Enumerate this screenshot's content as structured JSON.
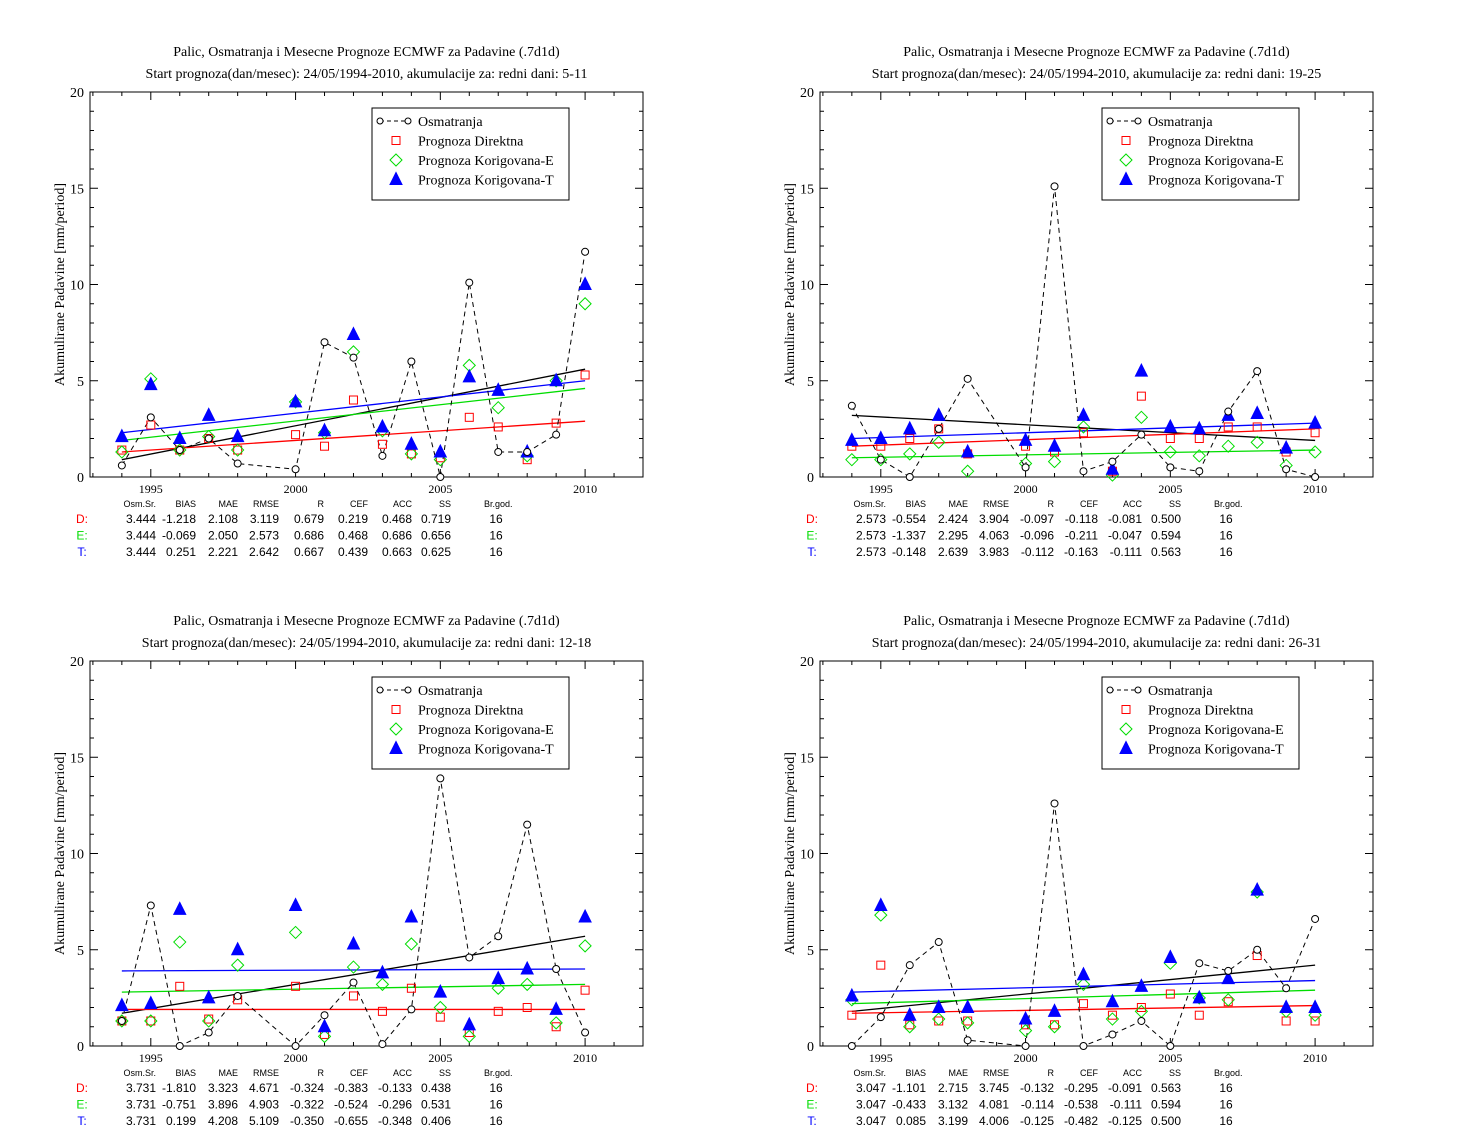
{
  "common": {
    "ylabel": "Akumulirane Padavine [mm/period]",
    "ylim": [
      0,
      20
    ],
    "yticks": [
      0,
      5,
      10,
      15,
      20
    ],
    "xlim": [
      1992.9,
      2012
    ],
    "xticks": [
      1995,
      2000,
      2005,
      2010
    ],
    "legend": [
      "Osmatranja",
      "Prognoza Direktna",
      "Prognoza Korigovana-E",
      "Prognoza Korigovana-T"
    ],
    "legend_position": "top-right",
    "stats_headers": [
      "Osm.Sr.",
      "BIAS",
      "MAE",
      "RMSE",
      "R",
      "CEF",
      "ACC",
      "SS",
      "Br.god."
    ],
    "colors": {
      "obs": "#000000",
      "direct": "#ff0000",
      "corr_e": "#00dd00",
      "corr_t": "#0000ff"
    }
  },
  "chart_data": [
    {
      "type": "line",
      "title": "Palic, Osmatranja i Mesecne Prognoze ECMWF za Padavine (.7d1d)",
      "subtitle": "Start prognoza(dan/mesec): 24/05/1994-2010, akumulacije za: redni dani: 5-11",
      "x": [
        1994,
        1995,
        1996,
        1997,
        1998,
        2000,
        2001,
        2002,
        2003,
        2004,
        2005,
        2006,
        2007,
        2008,
        2009,
        2010
      ],
      "series": [
        {
          "name": "Osmatranja",
          "values": [
            0.6,
            3.1,
            1.4,
            2.0,
            0.7,
            0.4,
            7.0,
            6.2,
            1.1,
            6.0,
            0.0,
            10.1,
            1.3,
            1.3,
            2.2,
            11.7
          ]
        },
        {
          "name": "Prognoza Direktna",
          "values": [
            1.4,
            2.7,
            1.4,
            2.0,
            1.4,
            2.2,
            1.6,
            4.0,
            1.7,
            1.2,
            1.0,
            3.1,
            2.6,
            0.9,
            2.8,
            5.3
          ]
        },
        {
          "name": "Prognoza Korigovana-E",
          "values": [
            1.3,
            5.1,
            1.4,
            2.1,
            1.4,
            3.9,
            2.3,
            6.5,
            2.4,
            1.2,
            0.9,
            5.8,
            3.6,
            1.1,
            5.0,
            9.0
          ]
        },
        {
          "name": "Prognoza Korigovana-T",
          "values": [
            2.1,
            4.8,
            2.0,
            3.2,
            2.1,
            3.9,
            2.4,
            7.4,
            2.6,
            1.7,
            1.3,
            5.2,
            4.5,
            1.3,
            5.0,
            10.0
          ]
        }
      ],
      "trends": {
        "obs": [
          0.9,
          5.6
        ],
        "direct": [
          1.3,
          2.9
        ],
        "corr_e": [
          1.9,
          4.6
        ],
        "corr_t": [
          2.3,
          5.0
        ]
      },
      "stats": [
        {
          "label": "D:",
          "values": [
            "3.444",
            "-1.218",
            "2.108",
            "3.119",
            "0.679",
            "0.219",
            "0.468",
            "0.719",
            "16"
          ]
        },
        {
          "label": "E:",
          "values": [
            "3.444",
            "-0.069",
            "2.050",
            "2.573",
            "0.686",
            "0.468",
            "0.686",
            "0.656",
            "16"
          ]
        },
        {
          "label": "T:",
          "values": [
            "3.444",
            "0.251",
            "2.221",
            "2.642",
            "0.667",
            "0.439",
            "0.663",
            "0.625",
            "16"
          ]
        }
      ]
    },
    {
      "type": "line",
      "title": "Palic, Osmatranja i Mesecne Prognoze ECMWF za Padavine (.7d1d)",
      "subtitle": "Start prognoza(dan/mesec): 24/05/1994-2010, akumulacije za: redni dani: 19-25",
      "x": [
        1994,
        1995,
        1996,
        1997,
        1998,
        2000,
        2001,
        2002,
        2003,
        2004,
        2005,
        2006,
        2007,
        2008,
        2009,
        2010
      ],
      "series": [
        {
          "name": "Osmatranja",
          "values": [
            3.7,
            0.9,
            0.0,
            2.5,
            5.1,
            0.5,
            15.1,
            0.3,
            0.8,
            2.2,
            0.5,
            0.3,
            3.4,
            5.5,
            0.4,
            0.0
          ]
        },
        {
          "name": "Prognoza Direktna",
          "values": [
            1.6,
            1.6,
            2.0,
            2.5,
            1.2,
            1.6,
            1.3,
            2.3,
            0.3,
            4.2,
            2.0,
            2.0,
            2.6,
            2.6,
            1.3,
            2.3
          ]
        },
        {
          "name": "Prognoza Korigovana-E",
          "values": [
            0.9,
            0.9,
            1.2,
            1.8,
            0.3,
            0.7,
            0.8,
            2.6,
            0.1,
            3.1,
            1.3,
            1.1,
            1.6,
            1.8,
            0.6,
            1.3
          ]
        },
        {
          "name": "Prognoza Korigovana-T",
          "values": [
            1.9,
            2.0,
            2.5,
            3.2,
            1.3,
            1.9,
            1.6,
            3.2,
            0.4,
            5.5,
            2.6,
            2.5,
            3.2,
            3.3,
            1.5,
            2.8
          ]
        }
      ],
      "trends": {
        "obs": [
          3.2,
          1.9
        ],
        "direct": [
          1.6,
          2.5
        ],
        "corr_e": [
          1.0,
          1.4
        ],
        "corr_t": [
          2.0,
          2.8
        ]
      },
      "stats": [
        {
          "label": "D:",
          "values": [
            "2.573",
            "-0.554",
            "2.424",
            "3.904",
            "-0.097",
            "-0.118",
            "-0.081",
            "0.500",
            "16"
          ]
        },
        {
          "label": "E:",
          "values": [
            "2.573",
            "-1.337",
            "2.295",
            "4.063",
            "-0.096",
            "-0.211",
            "-0.047",
            "0.594",
            "16"
          ]
        },
        {
          "label": "T:",
          "values": [
            "2.573",
            "-0.148",
            "2.639",
            "3.983",
            "-0.112",
            "-0.163",
            "-0.111",
            "0.563",
            "16"
          ]
        }
      ]
    },
    {
      "type": "line",
      "title": "Palic, Osmatranja i Mesecne Prognoze ECMWF za Padavine (.7d1d)",
      "subtitle": "Start prognoza(dan/mesec): 24/05/1994-2010, akumulacije za: redni dani: 12-18",
      "x": [
        1994,
        1995,
        1996,
        1997,
        1998,
        2000,
        2001,
        2002,
        2003,
        2004,
        2005,
        2006,
        2007,
        2008,
        2009,
        2010
      ],
      "series": [
        {
          "name": "Osmatranja",
          "values": [
            1.3,
            7.3,
            0.0,
            0.7,
            2.6,
            0.0,
            1.6,
            3.3,
            0.1,
            1.9,
            13.9,
            4.6,
            5.7,
            11.5,
            4.0,
            0.7
          ]
        },
        {
          "name": "Prognoza Direktna",
          "values": [
            1.3,
            1.3,
            3.1,
            1.4,
            2.4,
            3.1,
            0.6,
            2.6,
            1.8,
            3.0,
            1.5,
            0.7,
            1.8,
            2.0,
            1.0,
            2.9
          ]
        },
        {
          "name": "Prognoza Korigovana-E",
          "values": [
            1.3,
            1.3,
            5.4,
            1.3,
            4.2,
            5.9,
            0.5,
            4.1,
            3.2,
            5.3,
            2.0,
            0.5,
            3.0,
            3.2,
            1.2,
            5.2
          ]
        },
        {
          "name": "Prognoza Korigovana-T",
          "values": [
            2.1,
            2.2,
            7.1,
            2.5,
            5.0,
            7.3,
            1.0,
            5.3,
            3.8,
            6.7,
            2.8,
            1.1,
            3.5,
            4.0,
            1.9,
            6.7
          ]
        }
      ],
      "trends": {
        "obs": [
          1.7,
          5.7
        ],
        "direct": [
          1.9,
          1.9
        ],
        "corr_e": [
          2.8,
          3.2
        ],
        "corr_t": [
          3.9,
          4.0
        ]
      },
      "stats": [
        {
          "label": "D:",
          "values": [
            "3.731",
            "-1.810",
            "3.323",
            "4.671",
            "-0.324",
            "-0.383",
            "-0.133",
            "0.438",
            "16"
          ]
        },
        {
          "label": "E:",
          "values": [
            "3.731",
            "-0.751",
            "3.896",
            "4.903",
            "-0.322",
            "-0.524",
            "-0.296",
            "0.531",
            "16"
          ]
        },
        {
          "label": "T:",
          "values": [
            "3.731",
            "0.199",
            "4.208",
            "5.109",
            "-0.350",
            "-0.655",
            "-0.348",
            "0.406",
            "16"
          ]
        }
      ]
    },
    {
      "type": "line",
      "title": "Palic, Osmatranja i Mesecne Prognoze ECMWF za Padavine (.7d1d)",
      "subtitle": "Start prognoza(dan/mesec): 24/05/1994-2010, akumulacije za: redni dani: 26-31",
      "x": [
        1994,
        1995,
        1996,
        1997,
        1998,
        2000,
        2001,
        2002,
        2003,
        2004,
        2005,
        2006,
        2007,
        2008,
        2009,
        2010
      ],
      "series": [
        {
          "name": "Osmatranja",
          "values": [
            0.0,
            1.5,
            4.2,
            5.4,
            0.3,
            0.0,
            12.6,
            0.0,
            0.6,
            1.3,
            0.0,
            4.3,
            3.9,
            5.0,
            3.0,
            6.6
          ]
        },
        {
          "name": "Prognoza Direktna",
          "values": [
            1.6,
            4.2,
            1.1,
            1.3,
            1.3,
            1.1,
            1.1,
            2.2,
            1.6,
            2.0,
            2.7,
            1.6,
            2.3,
            4.7,
            1.3,
            1.3
          ]
        },
        {
          "name": "Prognoza Korigovana-E",
          "values": [
            2.4,
            6.8,
            1.0,
            1.4,
            1.2,
            0.8,
            1.0,
            3.2,
            1.4,
            1.8,
            4.3,
            2.5,
            2.4,
            8.0,
            1.8,
            1.6
          ]
        },
        {
          "name": "Prognoza Korigovana-T",
          "values": [
            2.6,
            7.3,
            1.6,
            2.0,
            2.0,
            1.4,
            1.8,
            3.7,
            2.3,
            3.1,
            4.6,
            2.5,
            3.5,
            8.1,
            2.0,
            2.0
          ]
        }
      ],
      "trends": {
        "obs": [
          1.8,
          4.2
        ],
        "direct": [
          1.7,
          2.1
        ],
        "corr_e": [
          2.2,
          2.9
        ],
        "corr_t": [
          2.8,
          3.4
        ]
      },
      "stats": [
        {
          "label": "D:",
          "values": [
            "3.047",
            "-1.101",
            "2.715",
            "3.745",
            "-0.132",
            "-0.295",
            "-0.091",
            "0.563",
            "16"
          ]
        },
        {
          "label": "E:",
          "values": [
            "3.047",
            "-0.433",
            "3.132",
            "4.081",
            "-0.114",
            "-0.538",
            "-0.111",
            "0.594",
            "16"
          ]
        },
        {
          "label": "T:",
          "values": [
            "3.047",
            "0.085",
            "3.199",
            "4.006",
            "-0.125",
            "-0.482",
            "-0.125",
            "0.500",
            "16"
          ]
        }
      ]
    }
  ]
}
